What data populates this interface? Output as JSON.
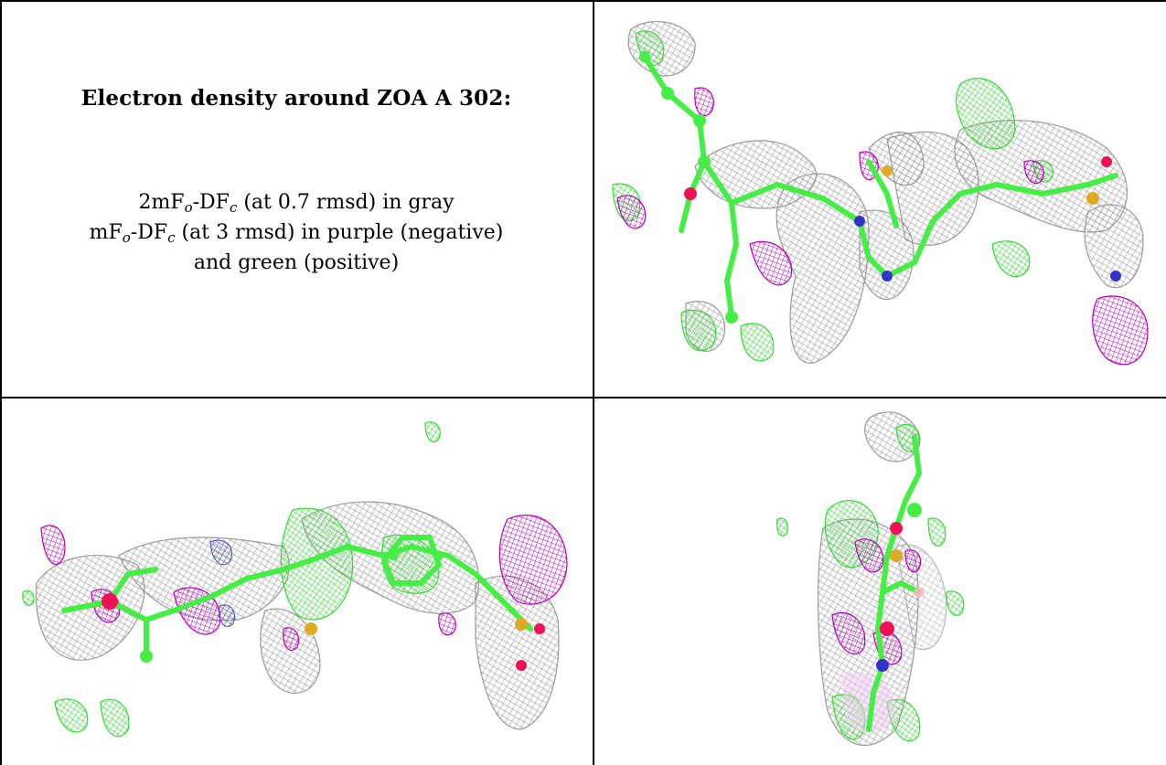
{
  "caption": {
    "title": "Electron density around ZOA A 302:",
    "line1_prefix": "2mF",
    "line1_sub1": "o",
    "line1_mid": "-DF",
    "line1_sub2": "c",
    "line1_suffix": " (at 0.7 rmsd) in gray",
    "line2_prefix": "mF",
    "line2_sub1": "o",
    "line2_mid": "-DF",
    "line2_sub2": "c",
    "line2_suffix": " (at 3 rmsd) in purple (negative)",
    "line3": "and green (positive)"
  },
  "colors": {
    "map_2fofc": "#8c8c8c",
    "map_negative": "#cc00cc",
    "map_positive": "#22ee22",
    "atom_carbon": "#44ee44",
    "atom_nitrogen": "#3333cc",
    "atom_oxygen": "#ee1155",
    "atom_sulfur": "#ddaa22"
  },
  "views": [
    {
      "name": "view-top-right",
      "icon": "molecule-density-view"
    },
    {
      "name": "view-bottom-left",
      "icon": "molecule-density-view"
    },
    {
      "name": "view-bottom-right",
      "icon": "molecule-density-view"
    }
  ]
}
